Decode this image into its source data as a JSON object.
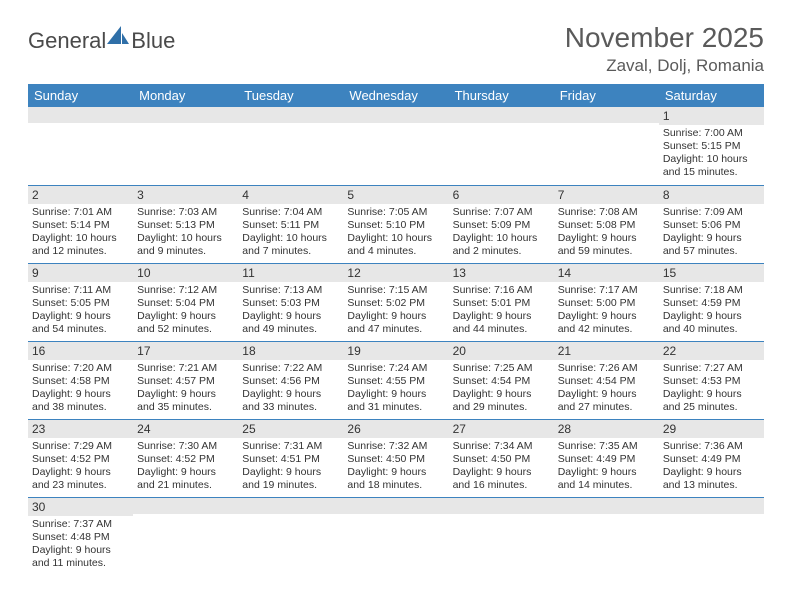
{
  "logo": {
    "general": "General",
    "blue": "Blue"
  },
  "colors": {
    "header_bg": "#3d83bf",
    "header_fg": "#ffffff",
    "daynum_bg": "#e7e7e7",
    "rule": "#3d83bf"
  },
  "title": "November 2025",
  "location": "Zaval, Dolj, Romania",
  "weekdays": [
    "Sunday",
    "Monday",
    "Tuesday",
    "Wednesday",
    "Thursday",
    "Friday",
    "Saturday"
  ],
  "weeks": [
    [
      null,
      null,
      null,
      null,
      null,
      null,
      {
        "n": "1",
        "sr": "Sunrise: 7:00 AM",
        "ss": "Sunset: 5:15 PM",
        "dl": "Daylight: 10 hours and 15 minutes."
      }
    ],
    [
      {
        "n": "2",
        "sr": "Sunrise: 7:01 AM",
        "ss": "Sunset: 5:14 PM",
        "dl": "Daylight: 10 hours and 12 minutes."
      },
      {
        "n": "3",
        "sr": "Sunrise: 7:03 AM",
        "ss": "Sunset: 5:13 PM",
        "dl": "Daylight: 10 hours and 9 minutes."
      },
      {
        "n": "4",
        "sr": "Sunrise: 7:04 AM",
        "ss": "Sunset: 5:11 PM",
        "dl": "Daylight: 10 hours and 7 minutes."
      },
      {
        "n": "5",
        "sr": "Sunrise: 7:05 AM",
        "ss": "Sunset: 5:10 PM",
        "dl": "Daylight: 10 hours and 4 minutes."
      },
      {
        "n": "6",
        "sr": "Sunrise: 7:07 AM",
        "ss": "Sunset: 5:09 PM",
        "dl": "Daylight: 10 hours and 2 minutes."
      },
      {
        "n": "7",
        "sr": "Sunrise: 7:08 AM",
        "ss": "Sunset: 5:08 PM",
        "dl": "Daylight: 9 hours and 59 minutes."
      },
      {
        "n": "8",
        "sr": "Sunrise: 7:09 AM",
        "ss": "Sunset: 5:06 PM",
        "dl": "Daylight: 9 hours and 57 minutes."
      }
    ],
    [
      {
        "n": "9",
        "sr": "Sunrise: 7:11 AM",
        "ss": "Sunset: 5:05 PM",
        "dl": "Daylight: 9 hours and 54 minutes."
      },
      {
        "n": "10",
        "sr": "Sunrise: 7:12 AM",
        "ss": "Sunset: 5:04 PM",
        "dl": "Daylight: 9 hours and 52 minutes."
      },
      {
        "n": "11",
        "sr": "Sunrise: 7:13 AM",
        "ss": "Sunset: 5:03 PM",
        "dl": "Daylight: 9 hours and 49 minutes."
      },
      {
        "n": "12",
        "sr": "Sunrise: 7:15 AM",
        "ss": "Sunset: 5:02 PM",
        "dl": "Daylight: 9 hours and 47 minutes."
      },
      {
        "n": "13",
        "sr": "Sunrise: 7:16 AM",
        "ss": "Sunset: 5:01 PM",
        "dl": "Daylight: 9 hours and 44 minutes."
      },
      {
        "n": "14",
        "sr": "Sunrise: 7:17 AM",
        "ss": "Sunset: 5:00 PM",
        "dl": "Daylight: 9 hours and 42 minutes."
      },
      {
        "n": "15",
        "sr": "Sunrise: 7:18 AM",
        "ss": "Sunset: 4:59 PM",
        "dl": "Daylight: 9 hours and 40 minutes."
      }
    ],
    [
      {
        "n": "16",
        "sr": "Sunrise: 7:20 AM",
        "ss": "Sunset: 4:58 PM",
        "dl": "Daylight: 9 hours and 38 minutes."
      },
      {
        "n": "17",
        "sr": "Sunrise: 7:21 AM",
        "ss": "Sunset: 4:57 PM",
        "dl": "Daylight: 9 hours and 35 minutes."
      },
      {
        "n": "18",
        "sr": "Sunrise: 7:22 AM",
        "ss": "Sunset: 4:56 PM",
        "dl": "Daylight: 9 hours and 33 minutes."
      },
      {
        "n": "19",
        "sr": "Sunrise: 7:24 AM",
        "ss": "Sunset: 4:55 PM",
        "dl": "Daylight: 9 hours and 31 minutes."
      },
      {
        "n": "20",
        "sr": "Sunrise: 7:25 AM",
        "ss": "Sunset: 4:54 PM",
        "dl": "Daylight: 9 hours and 29 minutes."
      },
      {
        "n": "21",
        "sr": "Sunrise: 7:26 AM",
        "ss": "Sunset: 4:54 PM",
        "dl": "Daylight: 9 hours and 27 minutes."
      },
      {
        "n": "22",
        "sr": "Sunrise: 7:27 AM",
        "ss": "Sunset: 4:53 PM",
        "dl": "Daylight: 9 hours and 25 minutes."
      }
    ],
    [
      {
        "n": "23",
        "sr": "Sunrise: 7:29 AM",
        "ss": "Sunset: 4:52 PM",
        "dl": "Daylight: 9 hours and 23 minutes."
      },
      {
        "n": "24",
        "sr": "Sunrise: 7:30 AM",
        "ss": "Sunset: 4:52 PM",
        "dl": "Daylight: 9 hours and 21 minutes."
      },
      {
        "n": "25",
        "sr": "Sunrise: 7:31 AM",
        "ss": "Sunset: 4:51 PM",
        "dl": "Daylight: 9 hours and 19 minutes."
      },
      {
        "n": "26",
        "sr": "Sunrise: 7:32 AM",
        "ss": "Sunset: 4:50 PM",
        "dl": "Daylight: 9 hours and 18 minutes."
      },
      {
        "n": "27",
        "sr": "Sunrise: 7:34 AM",
        "ss": "Sunset: 4:50 PM",
        "dl": "Daylight: 9 hours and 16 minutes."
      },
      {
        "n": "28",
        "sr": "Sunrise: 7:35 AM",
        "ss": "Sunset: 4:49 PM",
        "dl": "Daylight: 9 hours and 14 minutes."
      },
      {
        "n": "29",
        "sr": "Sunrise: 7:36 AM",
        "ss": "Sunset: 4:49 PM",
        "dl": "Daylight: 9 hours and 13 minutes."
      }
    ],
    [
      {
        "n": "30",
        "sr": "Sunrise: 7:37 AM",
        "ss": "Sunset: 4:48 PM",
        "dl": "Daylight: 9 hours and 11 minutes."
      },
      null,
      null,
      null,
      null,
      null,
      null
    ]
  ]
}
